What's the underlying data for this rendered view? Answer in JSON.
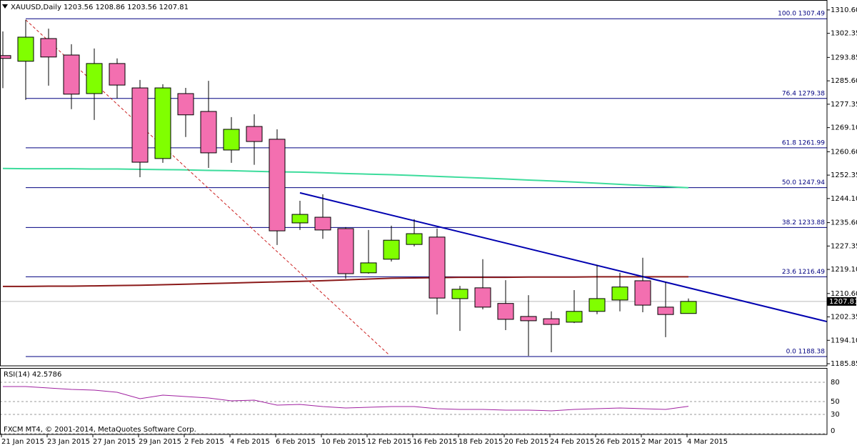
{
  "chart_data": [
    {
      "type": "candlestick",
      "title": "XAUUSD,Daily  1203.56 1208.86 1203.56 1207.81",
      "categories": [
        "21 Jan 2015",
        null,
        "23 Jan 2015",
        null,
        "27 Jan 2015",
        null,
        "29 Jan 2015",
        null,
        "2 Feb 2015",
        null,
        "4 Feb 2015",
        null,
        "6 Feb 2015",
        null,
        "10 Feb 2015",
        null,
        "12 Feb 2015",
        null,
        "16 Feb 2015",
        null,
        "18 Feb 2015",
        null,
        "20 Feb 2015",
        null,
        "24 Feb 2015",
        null,
        "26 Feb 2015",
        null,
        "2 Mar 2015",
        null,
        "4 Mar 2015"
      ],
      "open": [
        1294.5,
        1292.5,
        1300.5,
        1294.7,
        1281.1,
        1291.7,
        1283.1,
        1258.2,
        1281.1,
        1274.8,
        1261.2,
        1269.5,
        1265.0,
        1235.5,
        1237.5,
        1233.5,
        1217.9,
        1222.7,
        1227.9,
        1230.5,
        1208.8,
        1212.6,
        1207.1,
        1202.5,
        1201.7,
        1200.5,
        1204.3,
        1208.3,
        1215.1,
        1205.8,
        1203.56
      ],
      "high": [
        1303.0,
        1307.1,
        1304.0,
        1298.5,
        1297.0,
        1293.5,
        1285.9,
        1284.4,
        1283.1,
        1285.6,
        1272.8,
        1273.8,
        1268.5,
        1243.3,
        1245.6,
        1234.0,
        1233.0,
        1234.5,
        1236.8,
        1233.5,
        1213.3,
        1222.7,
        1215.3,
        1210.0,
        1204.3,
        1211.8,
        1220.7,
        1217.9,
        1223.2,
        1214.6,
        1208.86
      ],
      "low": [
        1283.0,
        1278.9,
        1283.9,
        1275.6,
        1271.8,
        1279.4,
        1251.6,
        1256.7,
        1265.8,
        1254.9,
        1256.7,
        1256.0,
        1227.7,
        1233.0,
        1229.9,
        1215.8,
        1217.6,
        1221.9,
        1227.2,
        1203.2,
        1197.4,
        1205.0,
        1197.7,
        1188.6,
        1189.9,
        1200.2,
        1203.3,
        1204.3,
        1204.0,
        1195.2,
        1203.56
      ],
      "close": [
        1293.5,
        1301.0,
        1294.0,
        1280.9,
        1291.7,
        1284.1,
        1256.9,
        1283.1,
        1273.6,
        1260.2,
        1268.5,
        1264.2,
        1232.7,
        1238.5,
        1233.0,
        1217.6,
        1221.4,
        1229.4,
        1231.7,
        1209.0,
        1212.1,
        1205.8,
        1201.5,
        1201.0,
        1199.7,
        1204.3,
        1208.8,
        1212.9,
        1206.5,
        1203.2,
        1207.81
      ],
      "up_color": "#80ff00",
      "down_color": "#f36fb0",
      "moving_averages": [
        {
          "color": "#3ddc9c",
          "values": [
            1254.7,
            1254.6,
            1254.6,
            1254.6,
            1254.5,
            1254.5,
            1254.4,
            1254.3,
            1254.2,
            1254.0,
            1253.9,
            1253.7,
            1253.5,
            1253.4,
            1253.2,
            1252.9,
            1252.7,
            1252.5,
            1252.2,
            1251.9,
            1251.6,
            1251.3,
            1251.0,
            1250.6,
            1250.3,
            1249.9,
            1249.5,
            1249.1,
            1248.7,
            1248.3,
            1247.9
          ]
        },
        {
          "color": "#8b1a1a",
          "values": [
            1213.1,
            1213.1,
            1213.2,
            1213.2,
            1213.3,
            1213.4,
            1213.5,
            1213.7,
            1213.9,
            1214.1,
            1214.3,
            1214.5,
            1214.7,
            1214.9,
            1215.1,
            1215.4,
            1215.7,
            1216.0,
            1216.1,
            1216.2,
            1216.3,
            1216.3,
            1216.3,
            1216.4,
            1216.4,
            1216.4,
            1216.5,
            1216.5,
            1216.5,
            1216.5,
            1216.5
          ]
        }
      ],
      "fib_levels": [
        {
          "value": 1307.49,
          "label": "100.0 1307.49"
        },
        {
          "value": 1279.38,
          "label": "76.4 1279.38"
        },
        {
          "value": 1261.99,
          "label": "61.8 1261.99"
        },
        {
          "value": 1247.94,
          "label": "50.0 1247.94"
        },
        {
          "value": 1233.88,
          "label": "38.2 1233.88"
        },
        {
          "value": 1216.49,
          "label": "23.6 1216.49"
        },
        {
          "value": 1188.38,
          "label": "0.0 1188.38"
        }
      ],
      "fib_color": "#000080",
      "trendlines": [
        {
          "color": "#0000b0",
          "dashed": false,
          "x": [
            13,
            36.06
          ],
          "y": [
            1246.1,
            1200.7
          ]
        },
        {
          "color": "#cc2020",
          "dashed": true,
          "x": [
            1,
            16.91
          ],
          "y": [
            1307.1,
            1188.9
          ]
        }
      ],
      "last_price": 1207.81,
      "ylim": [
        1185.1,
        1314.1
      ],
      "yticks": [
        {
          "value": 1310.6,
          "label": "1310.60"
        },
        1302.35,
        1293.85,
        {
          "value": 1285.6,
          "label": "1285.60"
        },
        1277.35,
        {
          "value": 1269.1,
          "label": "1269.10"
        },
        {
          "value": 1260.6,
          "label": "1260.60"
        },
        1252.35,
        {
          "value": 1244.1,
          "label": "1244.10"
        },
        {
          "value": 1235.6,
          "label": "1235.60"
        },
        1227.35,
        {
          "value": 1219.1,
          "label": "1219.10"
        },
        {
          "value": 1210.6,
          "label": "1210.60"
        },
        1202.35,
        {
          "value": 1194.1,
          "label": "1194.10"
        },
        1185.85
      ]
    },
    {
      "type": "line",
      "title": "RSI(14) 42.5786",
      "values": [
        73.3,
        73.3,
        71.1,
        68.9,
        67.8,
        64.4,
        54.4,
        60.0,
        57.8,
        55.6,
        51.1,
        52.2,
        44.4,
        45.6,
        42.2,
        40.0,
        41.1,
        42.2,
        42.2,
        38.9,
        37.8,
        37.8,
        36.7,
        36.7,
        35.6,
        37.8,
        38.9,
        40.0,
        38.9,
        37.8,
        42.5786
      ],
      "color": "#a020a0",
      "ylim": [
        -1.1,
        102.2
      ],
      "yticks": [
        80,
        50,
        30,
        0
      ],
      "grid": true,
      "footnote": "FXCM MT4, © 2001-2014, MetaQuotes Software Corp."
    }
  ]
}
